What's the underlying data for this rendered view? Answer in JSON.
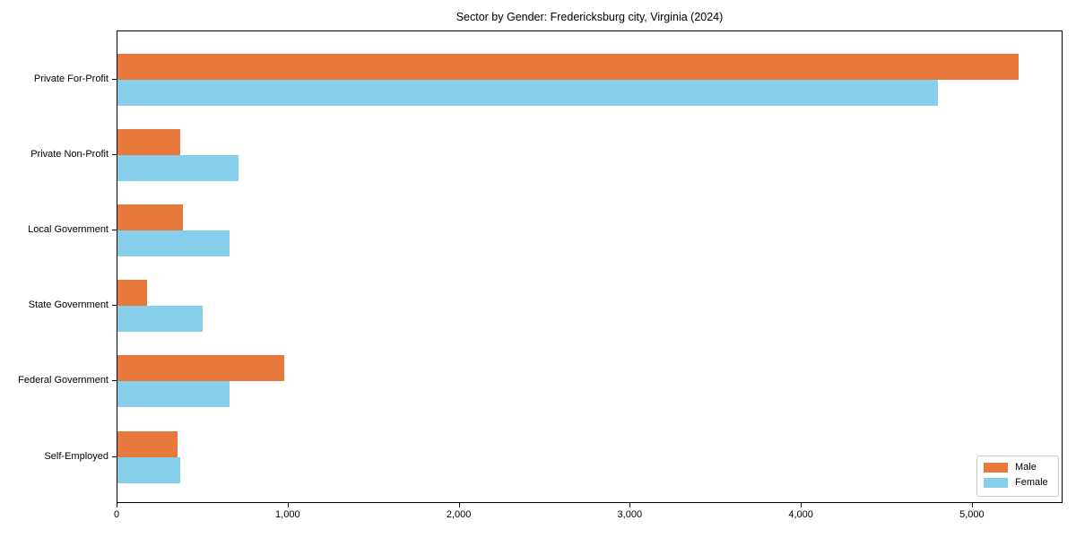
{
  "title": "Sector by Gender: Fredericksburg city, Virginia (2024)",
  "colors": {
    "male": "#e8793d",
    "female": "#87ceeb",
    "axis": "#000000",
    "legend_border": "#cccccc",
    "background": "#ffffff"
  },
  "chart_data": {
    "type": "bar",
    "orientation": "horizontal",
    "title": "Sector by Gender: Fredericksburg city, Virginia (2024)",
    "xlabel": "",
    "ylabel": "",
    "grid": false,
    "legend_position": "lower right",
    "categories": [
      "Private For-Profit",
      "Private Non-Profit",
      "Local Government",
      "State Government",
      "Federal Government",
      "Self-Employed"
    ],
    "series": [
      {
        "name": "Male",
        "color": "#e8793d",
        "values": [
          5270,
          365,
          385,
          175,
          975,
          350
        ]
      },
      {
        "name": "Female",
        "color": "#87ceeb",
        "values": [
          4795,
          705,
          655,
          500,
          655,
          365
        ]
      }
    ],
    "xlim": [
      0,
      5530
    ],
    "x_ticks": [
      0,
      1000,
      2000,
      3000,
      4000,
      5000
    ],
    "x_tick_labels": [
      "0",
      "1,000",
      "2,000",
      "3,000",
      "4,000",
      "5,000"
    ]
  },
  "legend": {
    "items": [
      {
        "label": "Male",
        "color": "#e8793d"
      },
      {
        "label": "Female",
        "color": "#87ceeb"
      }
    ]
  }
}
